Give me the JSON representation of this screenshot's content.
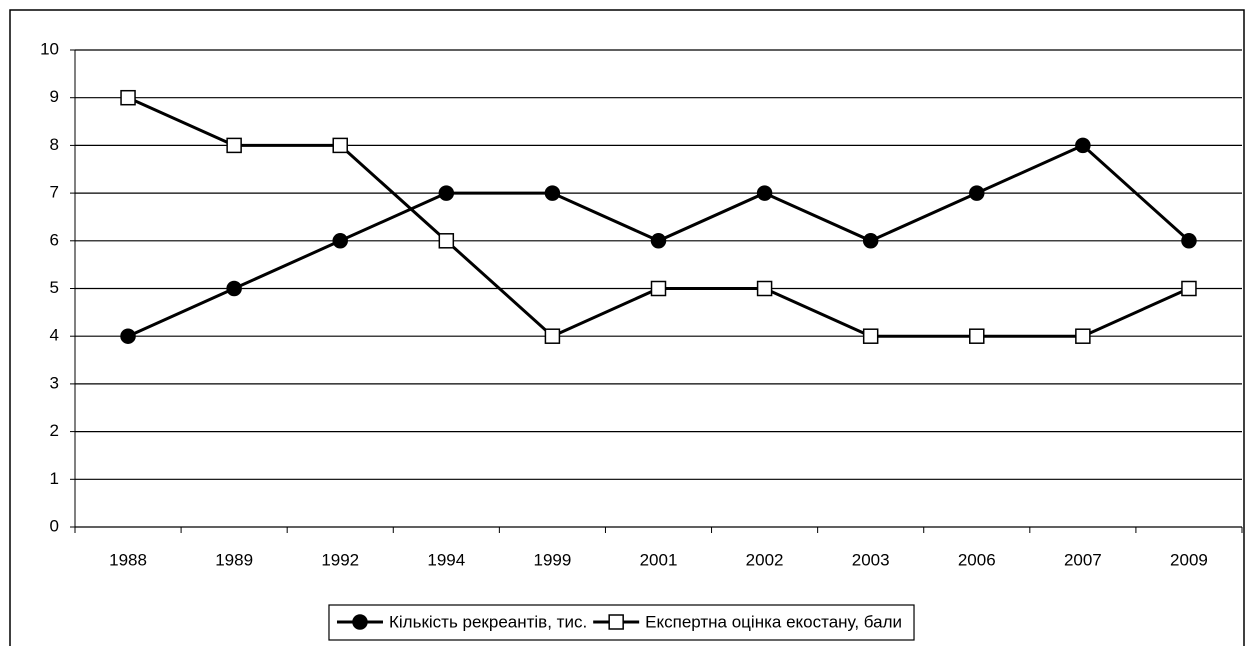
{
  "chart_data": {
    "type": "line",
    "categories": [
      "1988",
      "1989",
      "1992",
      "1994",
      "1999",
      "2001",
      "2002",
      "2003",
      "2006",
      "2007",
      "2009"
    ],
    "series": [
      {
        "name": "Кількість рекреантів, тис.",
        "color": "#000000",
        "marker": "circle",
        "marker_fill": "#000000",
        "values": [
          4,
          5,
          6,
          7,
          7,
          6,
          7,
          6,
          7,
          8,
          6
        ]
      },
      {
        "name": "Експертна оцінка екостану, бали",
        "color": "#000000",
        "marker": "square",
        "marker_fill": "#ffffff",
        "values": [
          9,
          8,
          8,
          6,
          4,
          5,
          5,
          4,
          4,
          4,
          5
        ]
      }
    ],
    "ylim": [
      0,
      10
    ],
    "yticks": [
      0,
      1,
      2,
      3,
      4,
      5,
      6,
      7,
      8,
      9,
      10
    ],
    "grid": true,
    "legend": "bottom"
  }
}
